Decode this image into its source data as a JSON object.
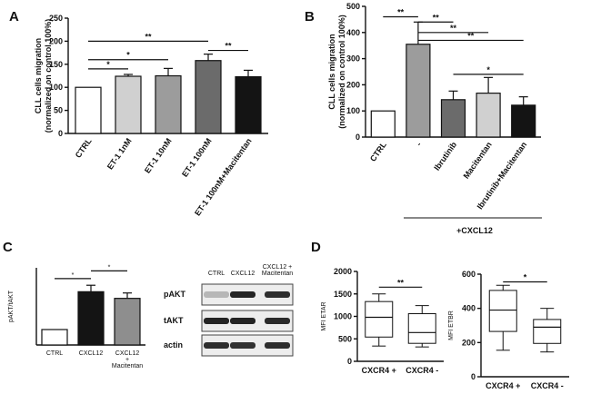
{
  "panel_labels": {
    "a": "A",
    "b": "B",
    "c": "C",
    "d": "D"
  },
  "chart_data": [
    {
      "id": "A",
      "type": "bar",
      "ylabel": "CLL cells migration\n(normalized on control 100%)",
      "ylim": [
        0,
        250
      ],
      "yticks": [
        0,
        50,
        100,
        150,
        200,
        250
      ],
      "categories": [
        "CTRL",
        "ET-1 1nM",
        "ET-1 10nM",
        "ET-1 100nM",
        "ET-1 100nM+Macitentan"
      ],
      "values": [
        100,
        124,
        125,
        158,
        123
      ],
      "errors": [
        0,
        4,
        16,
        14,
        14
      ],
      "colors": [
        "#ffffff",
        "#d0d0d0",
        "#9c9c9c",
        "#6b6b6b",
        "#141414"
      ],
      "significance": [
        {
          "from": 0,
          "to": 1,
          "label": "*",
          "y": 140
        },
        {
          "from": 0,
          "to": 2,
          "label": "*",
          "y": 160
        },
        {
          "from": 0,
          "to": 3,
          "label": "**",
          "y": 200
        },
        {
          "from": 3,
          "to": 4,
          "label": "**",
          "y": 180
        }
      ]
    },
    {
      "id": "B",
      "type": "bar",
      "ylabel": "CLL cells migration\n(normalized on control 100%)",
      "ylim": [
        0,
        500
      ],
      "yticks": [
        0,
        100,
        200,
        300,
        400,
        500
      ],
      "categories": [
        "CTRL",
        "-",
        "Ibrutinib",
        "Macitentan",
        "Ibrutinib+Macitentan"
      ],
      "values": [
        100,
        355,
        143,
        168,
        122
      ],
      "errors": [
        0,
        85,
        33,
        60,
        32
      ],
      "colors": [
        "#ffffff",
        "#9c9c9c",
        "#6b6b6b",
        "#d0d0d0",
        "#141414"
      ],
      "significance": [
        {
          "from": 0,
          "to": 1,
          "label": "**",
          "y": 460
        },
        {
          "from": 1,
          "to": 2,
          "label": "**",
          "y": 440
        },
        {
          "from": 1,
          "to": 3,
          "label": "**",
          "y": 400
        },
        {
          "from": 1,
          "to": 4,
          "label": "**",
          "y": 370
        },
        {
          "from": 2,
          "to": 4,
          "label": "*",
          "y": 240
        }
      ],
      "group_label": "+CXCL12"
    },
    {
      "id": "C",
      "type": "bar",
      "ylabel": "pAKT/tAKT",
      "categories": [
        "CTRL",
        "CXCL12",
        "CXCL12\n+\nMacitentan"
      ],
      "values": [
        100,
        345,
        302
      ],
      "errors": [
        0,
        42,
        35
      ],
      "ylim": [
        0,
        500
      ],
      "colors": [
        "#ffffff",
        "#141414",
        "#8e8e8e"
      ],
      "significance": [
        {
          "from": 0,
          "to": 1,
          "label": "*",
          "y": 430
        },
        {
          "from": 1,
          "to": 2,
          "label": "*",
          "y": 480
        }
      ]
    },
    {
      "id": "C-blot",
      "type": "table",
      "columns": [
        "CTRL",
        "CXCL12",
        "CXCL12 +\nMacitentan"
      ],
      "rows": [
        "pAKT",
        "tAKT",
        "actin"
      ],
      "intensity": [
        [
          0.25,
          0.95,
          0.9
        ],
        [
          0.95,
          0.95,
          0.92
        ],
        [
          0.9,
          0.88,
          0.9
        ]
      ]
    },
    {
      "id": "D1",
      "type": "box",
      "ylabel": "MFI ETAR",
      "ylim": [
        0,
        2000
      ],
      "yticks": [
        0,
        500,
        1000,
        1500,
        2000
      ],
      "categories": [
        "CXCR4 +",
        "CXCR4 -"
      ],
      "boxes": [
        {
          "min": 340,
          "q1": 540,
          "median": 980,
          "q3": 1330,
          "max": 1500
        },
        {
          "min": 320,
          "q1": 400,
          "median": 640,
          "q3": 1060,
          "max": 1240
        }
      ],
      "significance": [
        {
          "from": 0,
          "to": 1,
          "label": "**",
          "y": 1650
        }
      ]
    },
    {
      "id": "D2",
      "type": "box",
      "ylabel": "MFI ETBR",
      "ylim": [
        0,
        600
      ],
      "yticks": [
        0,
        200,
        400,
        600
      ],
      "categories": [
        "CXCR4 +",
        "CXCR4 -"
      ],
      "boxes": [
        {
          "min": 155,
          "q1": 265,
          "median": 390,
          "q3": 505,
          "max": 535
        },
        {
          "min": 145,
          "q1": 195,
          "median": 290,
          "q3": 335,
          "max": 400
        }
      ],
      "significance": [
        {
          "from": 0,
          "to": 1,
          "label": "*",
          "y": 555
        }
      ]
    }
  ]
}
